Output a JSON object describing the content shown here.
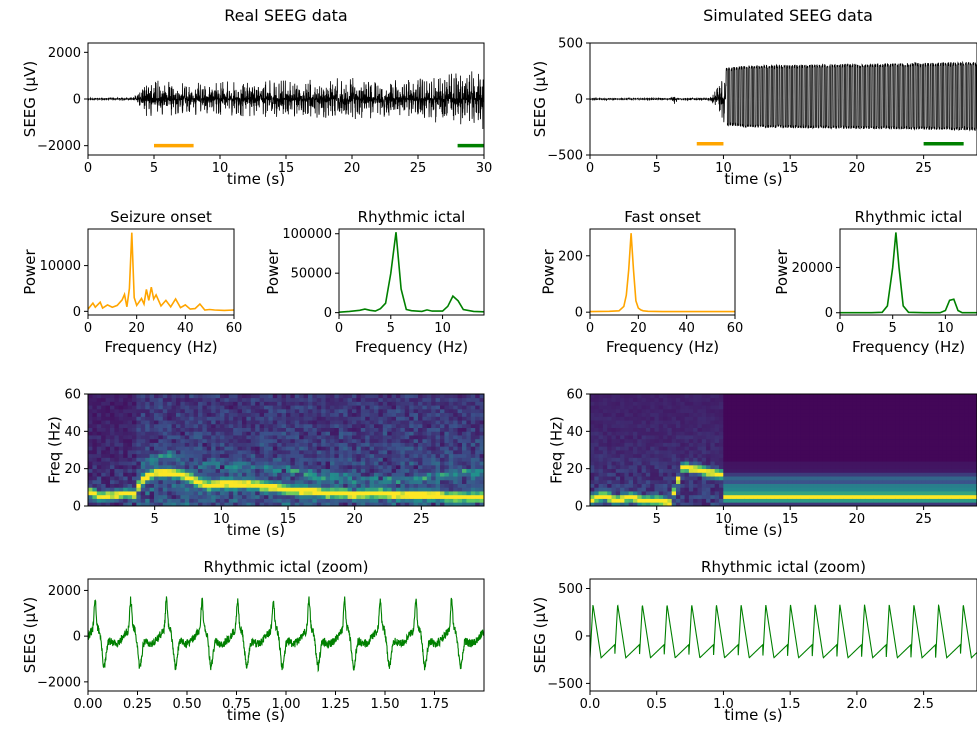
{
  "columns": {
    "left_title": "Real SEEG data",
    "right_title": "Simulated SEEG data"
  },
  "colors": {
    "onset": "#FFA500",
    "ictal": "#008000",
    "trace": "#000000"
  },
  "chart_data": [
    {
      "id": "real_trace",
      "type": "line",
      "title": "",
      "xlabel": "time (s)",
      "ylabel": "SEEG (μV)",
      "xlim": [
        0,
        30
      ],
      "ylim": [
        -2400,
        2400
      ],
      "xticks": [
        0,
        5,
        10,
        15,
        20,
        25,
        30
      ],
      "yticks": [
        -2000,
        0,
        2000
      ],
      "ytick_labels": [
        "−2000",
        "0",
        "2000"
      ],
      "series": [
        {
          "description": "black SEEG trace",
          "envelope_t": [
            0,
            3.5,
            4.5,
            8,
            12,
            18,
            21,
            24,
            26,
            28,
            30
          ],
          "envelope_amp": [
            50,
            80,
            900,
            700,
            800,
            900,
            900,
            900,
            1000,
            1300,
            1300
          ]
        }
      ],
      "markers": [
        {
          "name": "onset window",
          "color": "onset",
          "x": [
            5,
            8
          ],
          "y": -2000
        },
        {
          "name": "rhythmic ictal window",
          "color": "ictal",
          "x": [
            28,
            30
          ],
          "y": -2000
        }
      ]
    },
    {
      "id": "sim_trace",
      "type": "line",
      "title": "",
      "xlabel": "time (s)",
      "ylabel": "SEEG (μV)",
      "xlim": [
        0,
        29
      ],
      "ylim": [
        -500,
        500
      ],
      "xticks": [
        0,
        5,
        10,
        15,
        20,
        25
      ],
      "yticks": [
        -500,
        0,
        500
      ],
      "ytick_labels": [
        "−500",
        "0",
        "500"
      ],
      "series": [
        {
          "description": "black simulated trace",
          "envelope_t": [
            0,
            6,
            6.3,
            6.6,
            9,
            10.2,
            12,
            29
          ],
          "envelope_amp": [
            10,
            10,
            80,
            10,
            15,
            280,
            300,
            330
          ]
        }
      ],
      "markers": [
        {
          "name": "onset window",
          "color": "onset",
          "x": [
            8,
            10
          ],
          "y": -400
        },
        {
          "name": "rhythmic ictal window",
          "color": "ictal",
          "x": [
            25,
            28
          ],
          "y": -400
        }
      ]
    },
    {
      "id": "real_psd_onset",
      "type": "line",
      "title": "Seizure onset",
      "xlabel": "Frequency (Hz)",
      "ylabel": "Power",
      "xlim": [
        0,
        60
      ],
      "ylim": [
        -800,
        18000
      ],
      "xticks": [
        0,
        20,
        40,
        60
      ],
      "yticks": [
        0,
        10000
      ],
      "series": [
        {
          "color": "onset",
          "x": [
            0,
            2,
            3,
            5,
            6,
            8,
            10,
            12,
            14,
            15,
            16,
            17,
            18,
            19,
            20,
            22,
            23,
            24,
            25,
            26,
            27,
            28,
            30,
            32,
            34,
            36,
            38,
            40,
            42,
            44,
            46,
            48,
            50,
            52,
            56,
            60
          ],
          "y": [
            500,
            1800,
            900,
            2000,
            700,
            1400,
            900,
            1300,
            2500,
            3700,
            1000,
            5000,
            17200,
            3000,
            1300,
            2800,
            1600,
            4800,
            2400,
            5300,
            2700,
            3600,
            1200,
            2400,
            1000,
            2700,
            800,
            1400,
            500,
            600,
            1600,
            300,
            400,
            300,
            200,
            300
          ]
        }
      ]
    },
    {
      "id": "real_psd_ictal",
      "type": "line",
      "title": "Rhythmic ictal",
      "xlabel": "Frequency (Hz)",
      "ylabel": "Power",
      "xlim": [
        0,
        14
      ],
      "ylim": [
        -3000,
        106000
      ],
      "xticks": [
        0,
        5,
        10
      ],
      "yticks": [
        0,
        50000,
        100000
      ],
      "series": [
        {
          "color": "ictal",
          "x": [
            0,
            1,
            2,
            2.5,
            3,
            3.5,
            4,
            4.5,
            5,
            5.5,
            6,
            6.5,
            7,
            8,
            8.5,
            9,
            10,
            10.5,
            11,
            11.5,
            12,
            13,
            14
          ],
          "y": [
            500,
            1500,
            3000,
            4500,
            3000,
            2000,
            5000,
            12000,
            50000,
            102000,
            30000,
            4000,
            2500,
            1500,
            3500,
            2000,
            2000,
            8000,
            21000,
            15000,
            4000,
            1500,
            1000
          ]
        }
      ]
    },
    {
      "id": "sim_psd_onset",
      "type": "line",
      "title": "Fast onset",
      "xlabel": "Frequency (Hz)",
      "ylabel": "Power",
      "xlim": [
        0,
        60
      ],
      "ylim": [
        -10,
        295
      ],
      "xticks": [
        0,
        20,
        40,
        60
      ],
      "yticks": [
        0,
        200
      ],
      "series": [
        {
          "color": "onset",
          "x": [
            0,
            8,
            12,
            14,
            15,
            16,
            17,
            18,
            19,
            20,
            21,
            22,
            24,
            30,
            40,
            50,
            60
          ],
          "y": [
            2,
            3,
            5,
            20,
            60,
            150,
            280,
            150,
            40,
            15,
            8,
            5,
            3,
            2,
            2,
            2,
            2
          ]
        }
      ]
    },
    {
      "id": "sim_psd_ictal",
      "type": "line",
      "title": "Rhythmic ictal",
      "xlabel": "Frequency (Hz)",
      "ylabel": "Power",
      "xlim": [
        0,
        13
      ],
      "ylim": [
        -1000,
        37000
      ],
      "xticks": [
        0,
        5,
        10
      ],
      "yticks": [
        0,
        20000
      ],
      "series": [
        {
          "color": "ictal",
          "x": [
            0,
            3,
            4,
            4.5,
            5,
            5.3,
            5.6,
            6,
            6.5,
            8,
            9.5,
            10,
            10.4,
            10.8,
            11.2,
            11.6,
            12,
            13
          ],
          "y": [
            0,
            0,
            200,
            3000,
            20000,
            35500,
            20000,
            3000,
            200,
            0,
            0,
            1000,
            5500,
            6000,
            1000,
            0,
            0,
            0
          ]
        }
      ]
    },
    {
      "id": "real_spectrogram",
      "type": "heatmap",
      "title": "",
      "xlabel": "time (s)",
      "ylabel": "Freq (Hz)",
      "xlim": [
        0,
        29.7
      ],
      "ylim": [
        0,
        60
      ],
      "xticks": [
        5,
        10,
        15,
        20,
        25
      ],
      "yticks": [
        0,
        20,
        40,
        60
      ],
      "colormap": "viridis",
      "ridge_t": [
        0,
        1,
        2,
        3,
        3.5,
        4,
        5,
        6,
        7,
        8,
        9,
        10,
        11,
        12,
        13,
        14,
        15,
        16,
        17,
        18,
        19,
        20,
        21,
        22,
        23,
        24,
        25,
        26,
        27,
        28,
        29.7
      ],
      "ridge_hz": [
        8,
        5,
        6,
        7,
        6,
        14,
        18,
        18,
        17,
        14,
        11,
        12,
        12,
        12,
        11,
        10,
        9,
        8,
        8,
        7,
        7,
        6,
        7,
        7,
        6,
        6,
        6,
        6,
        5,
        5,
        5
      ],
      "harmonic_t": [
        4,
        6,
        8,
        14,
        20,
        22,
        24,
        26,
        28,
        29.7
      ],
      "harmonic_hz": [
        22,
        28,
        22,
        20,
        14,
        14,
        14,
        16,
        18,
        18
      ]
    },
    {
      "id": "sim_spectrogram",
      "type": "heatmap",
      "title": "",
      "xlabel": "time (s)",
      "ylabel": "Freq (Hz)",
      "xlim": [
        0,
        29
      ],
      "ylim": [
        0,
        60
      ],
      "xticks": [
        5,
        10,
        15,
        20,
        25
      ],
      "yticks": [
        0,
        20,
        40,
        60
      ],
      "colormap": "viridis",
      "ridge_t": [
        0,
        1,
        2,
        3,
        4,
        5,
        6,
        6.5,
        7,
        7.5,
        8,
        9,
        10,
        10.1,
        12,
        15,
        20,
        25,
        29
      ],
      "ridge_hz": [
        3,
        6,
        3,
        5,
        3,
        3,
        2,
        12,
        22,
        20,
        20,
        18,
        17,
        5,
        5,
        5,
        5,
        5,
        5
      ],
      "harmonic_t": [
        10.1,
        29
      ],
      "harmonic_hz": [
        10,
        10
      ],
      "third_t": [
        10.1,
        29
      ],
      "third_hz": [
        15,
        15
      ]
    },
    {
      "id": "real_zoom",
      "type": "line",
      "title": "Rhythmic ictal (zoom)",
      "xlabel": "time (s)",
      "ylabel": "SEEG (μV)",
      "xlim": [
        0,
        2.0
      ],
      "ylim": [
        -2400,
        2500
      ],
      "xticks": [
        0,
        0.25,
        0.5,
        0.75,
        1.0,
        1.25,
        1.5,
        1.75
      ],
      "xtick_labels": [
        "0.00",
        "0.25",
        "0.50",
        "0.75",
        "1.00",
        "1.25",
        "1.50",
        "1.75"
      ],
      "yticks": [
        -2000,
        0,
        2000
      ],
      "ytick_labels": [
        "−2000",
        "0",
        "2000"
      ],
      "series": [
        {
          "color": "ictal",
          "description": "rhythmic spike-wave, ~5.5 Hz, amplitude ~1300 μV",
          "period_s": 0.18,
          "amp": 1300
        }
      ]
    },
    {
      "id": "sim_zoom",
      "type": "line",
      "title": "Rhythmic ictal (zoom)",
      "xlabel": "time (s)",
      "ylabel": "SEEG (μV)",
      "xlim": [
        0,
        2.9
      ],
      "ylim": [
        -580,
        600
      ],
      "xticks": [
        0,
        0.5,
        1.0,
        1.5,
        2.0,
        2.5
      ],
      "xtick_labels": [
        "0.0",
        "0.5",
        "1.0",
        "1.5",
        "2.0",
        "2.5"
      ],
      "yticks": [
        -500,
        0,
        500
      ],
      "ytick_labels": [
        "−500",
        "0",
        "500"
      ],
      "series": [
        {
          "color": "ictal",
          "description": "periodic spike-wave, ~5.4 Hz, peak ~330, trough ~−230 μV",
          "period_s": 0.185,
          "peak": 330,
          "trough": -230
        }
      ]
    }
  ]
}
